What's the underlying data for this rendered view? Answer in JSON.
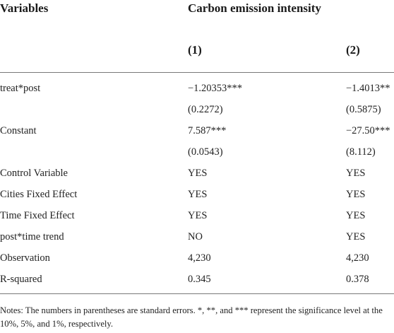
{
  "table": {
    "header": {
      "variables_label": "Variables",
      "dependent_label": "Carbon emission intensity",
      "col1": "(1)",
      "col2": "(2)"
    },
    "rows": [
      {
        "label": "treat*post",
        "c1": "−1.20353***",
        "c2": "−1.4013**"
      },
      {
        "label": "",
        "c1": "(0.2272)",
        "c2": "(0.5875)"
      },
      {
        "label": "Constant",
        "c1": "7.587***",
        "c2": "−27.50***"
      },
      {
        "label": "",
        "c1": "(0.0543)",
        "c2": "(8.112)"
      },
      {
        "label": "Control Variable",
        "c1": "YES",
        "c2": "YES"
      },
      {
        "label": "Cities Fixed Effect",
        "c1": "YES",
        "c2": "YES"
      },
      {
        "label": "Time Fixed Effect",
        "c1": "YES",
        "c2": "YES"
      },
      {
        "label": "post*time trend",
        "c1": "NO",
        "c2": "YES"
      },
      {
        "label": "Observation",
        "c1": "4,230",
        "c2": "4,230"
      },
      {
        "label": "R-squared",
        "c1": "0.345",
        "c2": "0.378"
      }
    ],
    "notes": "Notes: The numbers in parentheses are standard errors. *, **, and *** represent the significance level at the 10%, 5%, and 1%, respectively."
  }
}
